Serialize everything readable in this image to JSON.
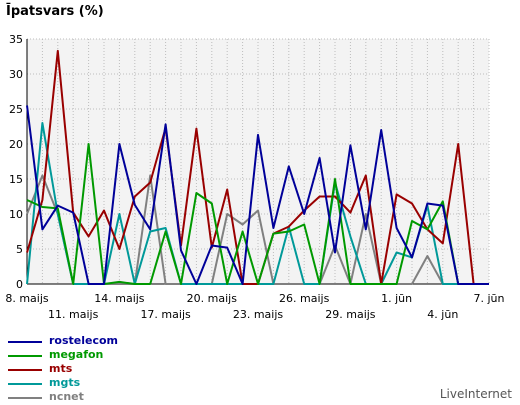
{
  "chart_data": {
    "type": "line",
    "ylabel": "Īpatsvars (%)",
    "ylim": [
      0,
      35
    ],
    "yticks": [
      0,
      5,
      10,
      15,
      20,
      25,
      30,
      35
    ],
    "x": [
      "8. maijs",
      "9. maijs",
      "10. maijs",
      "11. maijs",
      "12. maijs",
      "13. maijs",
      "14. maijs",
      "15. maijs",
      "16. maijs",
      "17. maijs",
      "18. maijs",
      "19. maijs",
      "20. maijs",
      "21. maijs",
      "22. maijs",
      "23. maijs",
      "24. maijs",
      "25. maijs",
      "26. maijs",
      "27. maijs",
      "28. maijs",
      "29. maijs",
      "30. maijs",
      "31. maijs",
      "1. jūn",
      "2. jūn",
      "3. jūn",
      "4. jūn",
      "5. jūn",
      "6. jūn",
      "7. jūn"
    ],
    "tick_labels_row1": [
      {
        "i": 0,
        "text": "8. maijs"
      },
      {
        "i": 6,
        "text": "14. maijs"
      },
      {
        "i": 12,
        "text": "20. maijs"
      },
      {
        "i": 18,
        "text": "26. maijs"
      },
      {
        "i": 24,
        "text": "1. jūn"
      },
      {
        "i": 30,
        "text": "7. jūn"
      }
    ],
    "tick_labels_row2": [
      {
        "i": 3,
        "text": "11. maijs"
      },
      {
        "i": 9,
        "text": "17. maijs"
      },
      {
        "i": 15,
        "text": "23. maijs"
      },
      {
        "i": 21,
        "text": "29. maijs"
      },
      {
        "i": 27,
        "text": "4. jūn"
      }
    ],
    "grid": true,
    "legend_position": "bottom-left",
    "series": [
      {
        "name": "rostelecom",
        "color": "#000099",
        "values": [
          25.5,
          7.8,
          11.2,
          10.2,
          0,
          0,
          20,
          11.3,
          7.8,
          22.8,
          4.8,
          0,
          5.5,
          5.2,
          0,
          21.3,
          8,
          16.8,
          10,
          18,
          4.5,
          19.8,
          7.8,
          22,
          8,
          3.8,
          11.5,
          11.2,
          0,
          0,
          0
        ]
      },
      {
        "name": "megafon",
        "color": "#009900",
        "values": [
          12,
          11,
          10.8,
          0,
          20,
          0,
          0.3,
          0,
          0,
          7.5,
          0,
          13,
          11.5,
          0,
          7.5,
          0,
          7.2,
          7.5,
          8.5,
          0,
          15,
          0,
          0,
          0,
          0,
          9,
          7.8,
          11.8,
          0,
          0,
          0
        ]
      },
      {
        "name": "mts",
        "color": "#990000",
        "values": [
          4.5,
          12,
          33.3,
          10.2,
          6.8,
          10.5,
          5,
          12.5,
          14.5,
          22.3,
          5.5,
          22.2,
          5.2,
          13.5,
          0,
          0,
          7.2,
          8.2,
          10.5,
          12.5,
          12.5,
          10.2,
          15.5,
          0,
          12.8,
          11.5,
          7.8,
          5.8,
          20,
          0,
          0
        ]
      },
      {
        "name": "mgts",
        "color": "#009999",
        "values": [
          0,
          23,
          10,
          0,
          0,
          0,
          10,
          0,
          7.5,
          8,
          0,
          0,
          0,
          0,
          0,
          0,
          0,
          8.2,
          0,
          0,
          14.5,
          6.8,
          0,
          0,
          4.5,
          3.8,
          11.2,
          0,
          0,
          0,
          0
        ]
      },
      {
        "name": "ncnet",
        "color": "#808080",
        "values": [
          10,
          15.5,
          10,
          0,
          0,
          0,
          0,
          0,
          15.5,
          0,
          0,
          0,
          0,
          10,
          8.5,
          10.5,
          0,
          0,
          0,
          0,
          5.5,
          0,
          10,
          0,
          0,
          0,
          4,
          0,
          0,
          0,
          0
        ]
      }
    ]
  },
  "credit": "LiveInternet"
}
